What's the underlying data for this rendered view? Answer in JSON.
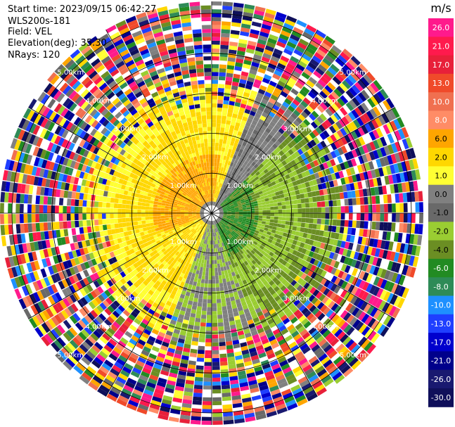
{
  "info": {
    "start_time": "Start time: 2023/09/15 06:42:27",
    "site": "WLS200s-181",
    "field": "Field: VEL",
    "elevation": "Elevation(deg): 35.30",
    "nrays": "NRays: 120"
  },
  "chart_data": {
    "type": "heatmap",
    "subtype": "polar PPI (plan position indicator)",
    "field": "VEL",
    "units": "m/s",
    "nrays": 120,
    "elevation_deg": 35.3,
    "range_rings_km": [
      1.0,
      2.0,
      3.0,
      4.0,
      5.0
    ],
    "range_ring_labels": [
      "1.00km",
      "2.00km",
      "3.00km",
      "4.00km",
      "5.00km"
    ],
    "max_range_km": 5.3,
    "colorbar": {
      "label": "m/s",
      "ticks": [
        "26.0",
        "21.0",
        "17.0",
        "13.0",
        "10.0",
        "8.0",
        "6.0",
        "2.0",
        "1.0",
        "0.0",
        "-1.0",
        "-2.0",
        "-4.0",
        "-6.0",
        "-8.0",
        "-10.0",
        "-13.0",
        "-17.0",
        "-21.0",
        "-26.0",
        "-30.0"
      ],
      "colors": [
        "#ff1a8c",
        "#ff1a4d",
        "#e8203a",
        "#f04a2a",
        "#f07050",
        "#ff8c66",
        "#ffa500",
        "#ffd700",
        "#ffff33",
        "#808080",
        "#696969",
        "#9acd32",
        "#6b8e23",
        "#228b22",
        "#2e8b57",
        "#1e90ff",
        "#1f3fff",
        "#0000cd",
        "#00008b",
        "#191970",
        "#0f0f5a"
      ]
    },
    "pattern_description_regions": [
      {
        "region": "north-west inner",
        "velocity": "2.0 to 6.0"
      },
      {
        "region": "west",
        "velocity": "1.0 to 2.0"
      },
      {
        "region": "east inner",
        "velocity": "-4.0 to -6.0"
      },
      {
        "region": "east middle",
        "velocity": "-1.0 to -4.0"
      },
      {
        "region": "outer (> 3 km)",
        "velocity": "noisy / mixed"
      }
    ]
  }
}
